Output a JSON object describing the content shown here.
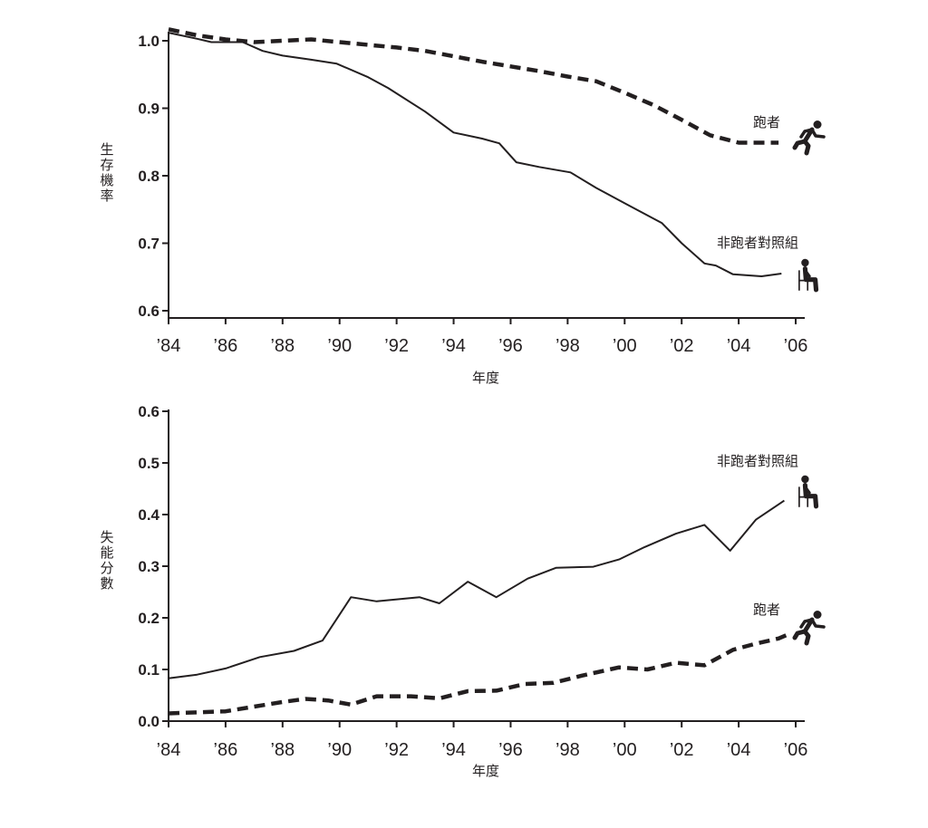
{
  "chart_data": [
    {
      "type": "line",
      "title": "",
      "xlabel": "年度",
      "ylabel": "生存機率",
      "x_ticks": [
        "’84",
        "’86",
        "’88",
        "’90",
        "’92",
        "’94",
        "’96",
        "’98",
        "’00",
        "’02",
        "’04",
        "’06"
      ],
      "x_tick_values": [
        1984,
        1986,
        1988,
        1990,
        1992,
        1994,
        1996,
        1998,
        2000,
        2002,
        2004,
        2006
      ],
      "y_ticks": [
        "1.0",
        "0.9",
        "0.8",
        "0.7",
        "0.6"
      ],
      "y_tick_values": [
        1.0,
        0.9,
        0.8,
        0.7,
        0.6
      ],
      "xlim": [
        1984,
        2006
      ],
      "ylim": [
        0.6,
        1.0
      ],
      "grid": false,
      "series": [
        {
          "name": "跑者",
          "icon": "runner-icon",
          "style": "dashed",
          "x": [
            1984,
            1985,
            1986,
            1987,
            1988,
            1989,
            1990,
            1991,
            1992,
            1993,
            1994,
            1995,
            1996,
            1997,
            1998,
            1999,
            2000,
            2001,
            2002,
            2003,
            2004,
            2005,
            2005.4
          ],
          "y": [
            1.017,
            1.008,
            1.002,
            0.998,
            1.0,
            1.002,
            0.998,
            0.994,
            0.99,
            0.985,
            0.977,
            0.969,
            0.962,
            0.955,
            0.947,
            0.94,
            0.923,
            0.905,
            0.883,
            0.86,
            0.849,
            0.849,
            0.849
          ]
        },
        {
          "name": "非跑者對照組",
          "icon": "seated-person-icon",
          "style": "solid",
          "x": [
            1984,
            1985,
            1985.5,
            1986.6,
            1987.3,
            1988,
            1989,
            1989.9,
            1991,
            1991.7,
            1993,
            1994,
            1995,
            1995.6,
            1996.2,
            1997,
            1998.1,
            1999,
            2000.1,
            2001.3,
            2002,
            2002.8,
            2003.2,
            2003.8,
            2004.8,
            2005.5
          ],
          "y": [
            1.012,
            1.003,
            0.998,
            0.998,
            0.985,
            0.978,
            0.972,
            0.966,
            0.946,
            0.93,
            0.895,
            0.864,
            0.855,
            0.848,
            0.82,
            0.813,
            0.805,
            0.782,
            0.757,
            0.73,
            0.7,
            0.67,
            0.667,
            0.654,
            0.651,
            0.655
          ]
        }
      ]
    },
    {
      "type": "line",
      "title": "",
      "xlabel": "年度",
      "ylabel": "失能分數",
      "x_ticks": [
        "’84",
        "’86",
        "’88",
        "’90",
        "’92",
        "’94",
        "’96",
        "’98",
        "’00",
        "’02",
        "’04",
        "’06"
      ],
      "x_tick_values": [
        1984,
        1986,
        1988,
        1990,
        1992,
        1994,
        1996,
        1998,
        2000,
        2002,
        2004,
        2006
      ],
      "y_ticks": [
        "0.6",
        "0.5",
        "0.4",
        "0.3",
        "0.2",
        "0.1",
        "0.0"
      ],
      "y_tick_values": [
        0.6,
        0.5,
        0.4,
        0.3,
        0.2,
        0.1,
        0.0
      ],
      "xlim": [
        1984,
        2006
      ],
      "ylim": [
        0.0,
        0.6
      ],
      "grid": false,
      "series": [
        {
          "name": "非跑者對照組",
          "icon": "seated-person-icon",
          "style": "solid",
          "x": [
            1984,
            1985,
            1986,
            1987.2,
            1988.4,
            1989.4,
            1990.4,
            1991.3,
            1992.8,
            1993.5,
            1994.5,
            1995.5,
            1996.6,
            1997.6,
            1998.9,
            1999.8,
            2000.7,
            2001.8,
            2002.8,
            2003.7,
            2004.6,
            2005.6
          ],
          "y": [
            0.083,
            0.09,
            0.102,
            0.124,
            0.136,
            0.156,
            0.24,
            0.232,
            0.24,
            0.228,
            0.27,
            0.24,
            0.276,
            0.297,
            0.299,
            0.313,
            0.337,
            0.363,
            0.38,
            0.33,
            0.39,
            0.427
          ]
        },
        {
          "name": "跑者",
          "icon": "runner-icon",
          "style": "dashed",
          "x": [
            1984,
            1985,
            1986,
            1987,
            1988,
            1988.8,
            1989.6,
            1990.4,
            1991.3,
            1992.5,
            1993.5,
            1994.5,
            1995.5,
            1996.5,
            1997.5,
            1998.5,
            1999.8,
            2000.8,
            2001.8,
            2002.8,
            2003.8,
            2004.6,
            2005.4,
            2005.7
          ],
          "y": [
            0.015,
            0.017,
            0.019,
            0.028,
            0.037,
            0.043,
            0.04,
            0.032,
            0.048,
            0.048,
            0.044,
            0.058,
            0.059,
            0.072,
            0.074,
            0.088,
            0.104,
            0.1,
            0.113,
            0.108,
            0.138,
            0.15,
            0.16,
            0.167
          ]
        }
      ]
    }
  ]
}
